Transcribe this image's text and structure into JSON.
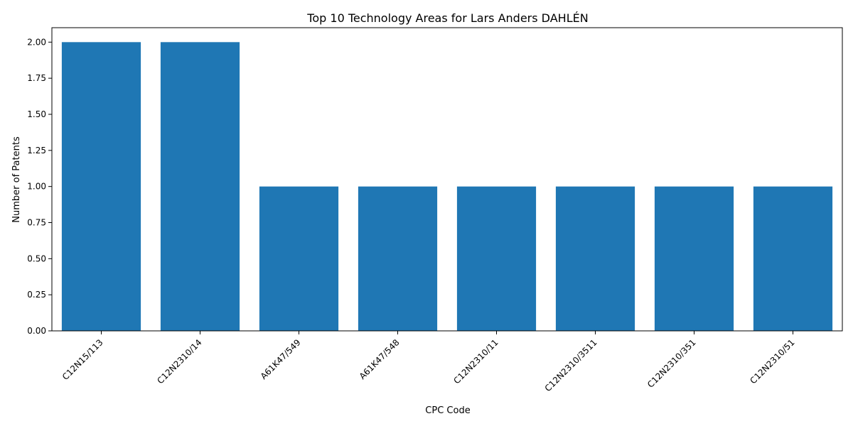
{
  "chart_data": {
    "type": "bar",
    "title": "Top 10 Technology Areas for Lars Anders DAHLÉN",
    "xlabel": "CPC Code",
    "ylabel": "Number of Patents",
    "categories": [
      "C12N15/113",
      "C12N2310/14",
      "A61K47/549",
      "A61K47/548",
      "C12N2310/11",
      "C12N2310/3511",
      "C12N2310/351",
      "C12N2310/51"
    ],
    "values": [
      2,
      2,
      1,
      1,
      1,
      1,
      1,
      1
    ],
    "ylim": [
      0,
      2.1
    ],
    "yticks": [
      "0.00",
      "0.25",
      "0.50",
      "0.75",
      "1.00",
      "1.25",
      "1.50",
      "1.75",
      "2.00"
    ],
    "bar_color": "#1f77b4",
    "grid": false,
    "legend": "none"
  }
}
